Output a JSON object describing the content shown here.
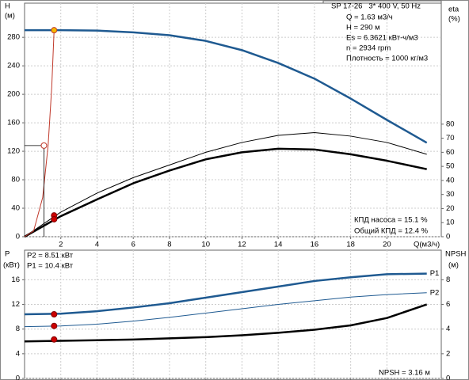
{
  "chart_data": [
    {
      "type": "line",
      "title": "SP 17-26   3* 400 V, 50 Hz",
      "info": [
        "Q = 1.63 м3/ч",
        "H = 290 м",
        "Es = 6.3621 кВт-ч/м3",
        "n = 2934 rpm",
        "Плотность = 1000 кг/м3"
      ],
      "ylabel": "H",
      "yunit": "(м)",
      "y2label": "eta",
      "y2unit": "(%)",
      "xlabel": "Q(м3/ч)",
      "x": [
        0,
        2,
        4,
        6,
        8,
        10,
        12,
        14,
        16,
        18,
        20,
        22.2
      ],
      "xlim": [
        0,
        23
      ],
      "xticks": [
        2,
        4,
        6,
        8,
        10,
        12,
        14,
        16,
        18,
        20
      ],
      "xtick_labels": true,
      "ylim": [
        0,
        328
      ],
      "yticks": [
        0,
        40,
        80,
        120,
        160,
        200,
        240,
        280
      ],
      "y2lim": [
        0,
        166
      ],
      "y2ticks": [
        0,
        10,
        20,
        30,
        40,
        50,
        60,
        70,
        80
      ],
      "grid": true,
      "series": [
        {
          "color": "#1f5a91",
          "width": 2.5,
          "values": [
            290,
            290,
            289.5,
            287,
            283,
            275,
            262,
            244,
            222,
            194,
            164,
            132
          ]
        },
        {
          "color": "#000000",
          "width": 1,
          "axis": "y2",
          "values": [
            0,
            17.5,
            31,
            42,
            51,
            60,
            67,
            72,
            74,
            71.5,
            67,
            58.6
          ]
        },
        {
          "color": "#000000",
          "width": 2.5,
          "axis": "y2",
          "values": [
            0,
            14.6,
            26.5,
            38,
            47,
            55,
            60,
            62.5,
            62,
            58.6,
            54,
            48
          ]
        },
        {
          "color": "#c0392b",
          "width": 1,
          "x": [
            0,
            0.5,
            1,
            1.3,
            1.5,
            1.63
          ],
          "values": [
            0,
            8,
            55,
            128,
            210,
            290
          ]
        }
      ],
      "points": [
        {
          "x": 1.07,
          "y": 128,
          "color": "#ffffff",
          "stroke": "#c0392b",
          "guides": true
        },
        {
          "x": 1.63,
          "y": 290,
          "color": "#f5b800",
          "stroke": "#c0392b"
        },
        {
          "x": 1.63,
          "y": 15.1,
          "axis": "y2",
          "color": "#cc0000",
          "stroke": "#800000"
        },
        {
          "x": 1.63,
          "y": 12.4,
          "axis": "y2",
          "color": "#cc0000",
          "stroke": "#800000"
        }
      ],
      "annotations": [
        "КПД насоса = 15.1 %",
        "Общий КПД = 12.4 %"
      ]
    },
    {
      "type": "line",
      "ylabel": "P",
      "yunit": "(кВт)",
      "y2label": "NPSH",
      "y2unit": "(м)",
      "x": [
        0,
        2,
        4,
        6,
        8,
        10,
        12,
        14,
        16,
        18,
        20,
        22.2
      ],
      "xlim": [
        0,
        23
      ],
      "xticks": [
        2,
        4,
        6,
        8,
        10,
        12,
        14,
        16,
        18,
        20
      ],
      "xtick_labels": false,
      "ylim": [
        0,
        20.8
      ],
      "yticks": [
        0,
        4,
        8,
        12,
        16
      ],
      "y2lim": [
        0,
        10.4
      ],
      "y2ticks": [
        0,
        2,
        4,
        6,
        8
      ],
      "grid": true,
      "series": [
        {
          "name": "P1",
          "color": "#1f5a91",
          "width": 2.5,
          "values": [
            10.4,
            10.5,
            10.9,
            11.5,
            12.2,
            13.1,
            14,
            14.9,
            15.8,
            16.4,
            16.9,
            17.0
          ]
        },
        {
          "name": "P2",
          "color": "#1f5a91",
          "width": 1,
          "values": [
            8.4,
            8.5,
            8.8,
            9.3,
            9.9,
            10.6,
            11.3,
            12,
            12.6,
            13.2,
            13.6,
            13.9
          ]
        },
        {
          "color": "#000000",
          "width": 2.5,
          "axis": "y2",
          "values": [
            3.0,
            3.05,
            3.1,
            3.15,
            3.25,
            3.35,
            3.5,
            3.7,
            3.95,
            4.3,
            4.9,
            6.0
          ]
        }
      ],
      "points": [
        {
          "x": 1.63,
          "y": 10.4,
          "color": "#cc0000",
          "stroke": "#800000"
        },
        {
          "x": 1.63,
          "y": 8.51,
          "color": "#cc0000",
          "stroke": "#800000"
        },
        {
          "x": 1.63,
          "y": 3.16,
          "axis": "y2",
          "color": "#cc0000",
          "stroke": "#800000"
        }
      ],
      "annotations": [
        "P2 = 8.51 кВт",
        "P1 = 10.4 кВт",
        "NPSH = 3.16 м"
      ]
    }
  ]
}
